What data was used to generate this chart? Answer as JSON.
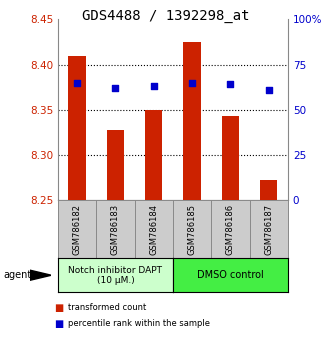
{
  "title": "GDS4488 / 1392298_at",
  "samples": [
    "GSM786182",
    "GSM786183",
    "GSM786184",
    "GSM786185",
    "GSM786186",
    "GSM786187"
  ],
  "bar_values": [
    8.41,
    8.328,
    8.35,
    8.425,
    8.343,
    8.272
  ],
  "dot_values": [
    65,
    62,
    63,
    65,
    64,
    61
  ],
  "bar_bottom": 8.25,
  "ylim_left": [
    8.25,
    8.45
  ],
  "ylim_right": [
    0,
    100
  ],
  "yticks_left": [
    8.25,
    8.3,
    8.35,
    8.4,
    8.45
  ],
  "yticks_right": [
    0,
    25,
    50,
    75,
    100
  ],
  "ytick_labels_right": [
    "0",
    "25",
    "50",
    "75",
    "100%"
  ],
  "bar_color": "#cc2200",
  "dot_color": "#0000cc",
  "grid_color": "#000000",
  "group1_label": "Notch inhibitor DAPT\n(10 μM.)",
  "group2_label": "DMSO control",
  "group1_color": "#ccffcc",
  "group2_color": "#44ee44",
  "group1_indices": [
    0,
    1,
    2
  ],
  "group2_indices": [
    3,
    4,
    5
  ],
  "legend_bar_label": "transformed count",
  "legend_dot_label": "percentile rank within the sample",
  "agent_label": "agent",
  "left_axis_color": "#cc2200",
  "right_axis_color": "#0000cc",
  "title_fontsize": 10,
  "tick_fontsize": 7.5,
  "bar_width": 0.45,
  "sample_box_color": "#cccccc",
  "sample_box_edge": "#888888"
}
